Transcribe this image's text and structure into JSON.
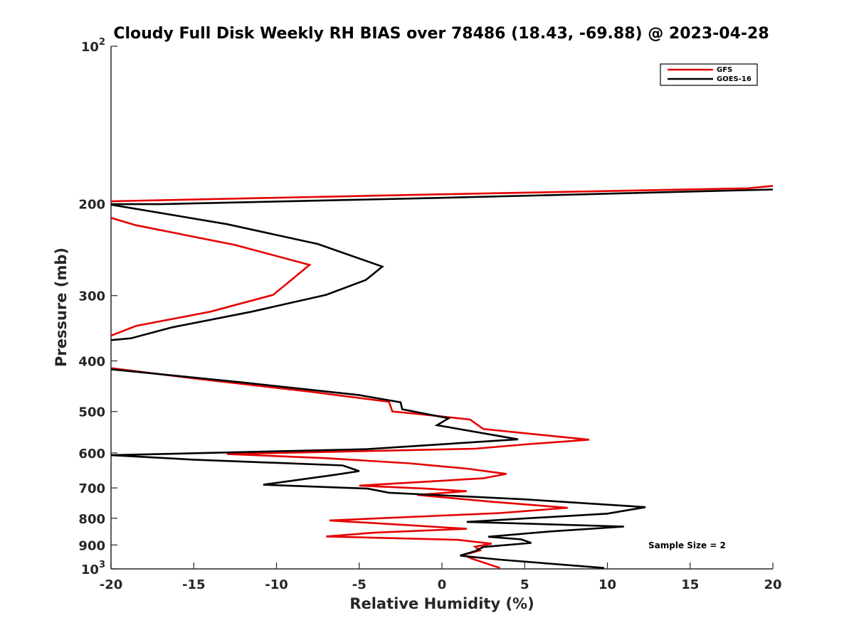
{
  "chart_data": {
    "type": "line",
    "title": "Cloudy Full Disk Weekly RH BIAS over 78486 (18.43, -69.88) @ 2023-04-28",
    "xlabel": "Relative Humidity (%)",
    "ylabel": "Pressure (mb)",
    "xlim": [
      -20,
      20
    ],
    "ylim": [
      100,
      1000
    ],
    "yscale": "log",
    "yreversed": true,
    "grid": false,
    "legend_position": "top-right",
    "x_ticks": [
      "-20",
      "-15",
      "-10",
      "-5",
      "0",
      "5",
      "10",
      "15",
      "20"
    ],
    "x_tick_values": [
      -20,
      -15,
      -10,
      -5,
      0,
      5,
      10,
      15,
      20
    ],
    "y_ticks": [
      {
        "value": 100,
        "base": "10",
        "exp": "2"
      },
      {
        "value": 200,
        "label": "200"
      },
      {
        "value": 300,
        "label": "300"
      },
      {
        "value": 400,
        "label": "400"
      },
      {
        "value": 500,
        "label": "500"
      },
      {
        "value": 600,
        "label": "600"
      },
      {
        "value": 700,
        "label": "700"
      },
      {
        "value": 800,
        "label": "800"
      },
      {
        "value": 900,
        "label": "900"
      },
      {
        "value": 1000,
        "base": "10",
        "exp": "3"
      }
    ],
    "annotation": "Sample Size = 2",
    "series": [
      {
        "name": "GFS",
        "color": "#e60000",
        "points": [
          [
            20.0,
            185
          ],
          [
            18.5,
            187
          ],
          [
            0.0,
            192
          ],
          [
            -20.0,
            198
          ],
          [
            null,
            null
          ],
          [
            -20.0,
            213
          ],
          [
            -18.5,
            220
          ],
          [
            -12.5,
            240
          ],
          [
            -8.0,
            262
          ],
          [
            -8.8,
            275
          ],
          [
            -10.2,
            299
          ],
          [
            -14.0,
            322
          ],
          [
            -18.5,
            343
          ],
          [
            -20.0,
            358
          ],
          [
            null,
            null
          ],
          [
            -20.0,
            413
          ],
          [
            -15.0,
            432
          ],
          [
            -8.0,
            458
          ],
          [
            -3.2,
            479
          ],
          [
            -3.0,
            500
          ],
          [
            -1.5,
            505
          ],
          [
            1.7,
            518
          ],
          [
            2.5,
            540
          ],
          [
            8.9,
            566
          ],
          [
            5.0,
            578
          ],
          [
            2.0,
            589
          ],
          [
            -13.0,
            603
          ],
          [
            -7.0,
            614
          ],
          [
            -2.0,
            628
          ],
          [
            1.5,
            643
          ],
          [
            3.9,
            658
          ],
          [
            2.5,
            671
          ],
          [
            -5.0,
            693
          ],
          [
            -1.0,
            702
          ],
          [
            1.5,
            710
          ],
          [
            -1.5,
            722
          ],
          [
            3.0,
            744
          ],
          [
            7.6,
            764
          ],
          [
            3.5,
            782
          ],
          [
            -6.8,
            808
          ],
          [
            -2.0,
            825
          ],
          [
            1.5,
            838
          ],
          [
            -4.0,
            852
          ],
          [
            -7.0,
            867
          ],
          [
            1.0,
            880
          ],
          [
            3.0,
            895
          ],
          [
            2.0,
            907
          ],
          [
            2.3,
            922
          ],
          [
            1.3,
            940
          ],
          [
            1.8,
            956
          ],
          [
            3.5,
            996
          ]
        ]
      },
      {
        "name": "GOES-16",
        "color": "#000000",
        "points": [
          [
            20.0,
            188
          ],
          [
            0.0,
            195
          ],
          [
            -17.0,
            200.5
          ],
          [
            -20.0,
            200.5
          ],
          [
            null,
            null
          ],
          [
            -20.0,
            201
          ],
          [
            -13.0,
            219
          ],
          [
            -7.5,
            239
          ],
          [
            -3.6,
            264
          ],
          [
            -4.6,
            280
          ],
          [
            -7.0,
            299
          ],
          [
            -11.5,
            322
          ],
          [
            -16.3,
            345
          ],
          [
            -18.8,
            362
          ],
          [
            -20.0,
            365
          ],
          [
            null,
            null
          ],
          [
            -20.0,
            415
          ],
          [
            -12.0,
            440
          ],
          [
            -5.0,
            465
          ],
          [
            -2.5,
            480
          ],
          [
            -2.4,
            495
          ],
          [
            0.4,
            515
          ],
          [
            -0.3,
            531
          ],
          [
            4.6,
            565
          ],
          [
            -4.5,
            590
          ],
          [
            -20.0,
            606
          ],
          [
            -15.0,
            618
          ],
          [
            -6.0,
            634
          ],
          [
            -5.0,
            650
          ],
          [
            -6.5,
            661
          ],
          [
            -10.8,
            690
          ],
          [
            -4.5,
            702
          ],
          [
            -3.2,
            715
          ],
          [
            5.0,
            736
          ],
          [
            12.3,
            762
          ],
          [
            10.0,
            784
          ],
          [
            1.5,
            813
          ],
          [
            11.0,
            830
          ],
          [
            6.5,
            848
          ],
          [
            2.8,
            868
          ],
          [
            4.8,
            878
          ],
          [
            5.4,
            892
          ],
          [
            2.5,
            908
          ],
          [
            2.0,
            925
          ],
          [
            1.1,
            943
          ],
          [
            2.0,
            950
          ],
          [
            3.5,
            960
          ],
          [
            9.8,
            996
          ]
        ]
      }
    ]
  }
}
